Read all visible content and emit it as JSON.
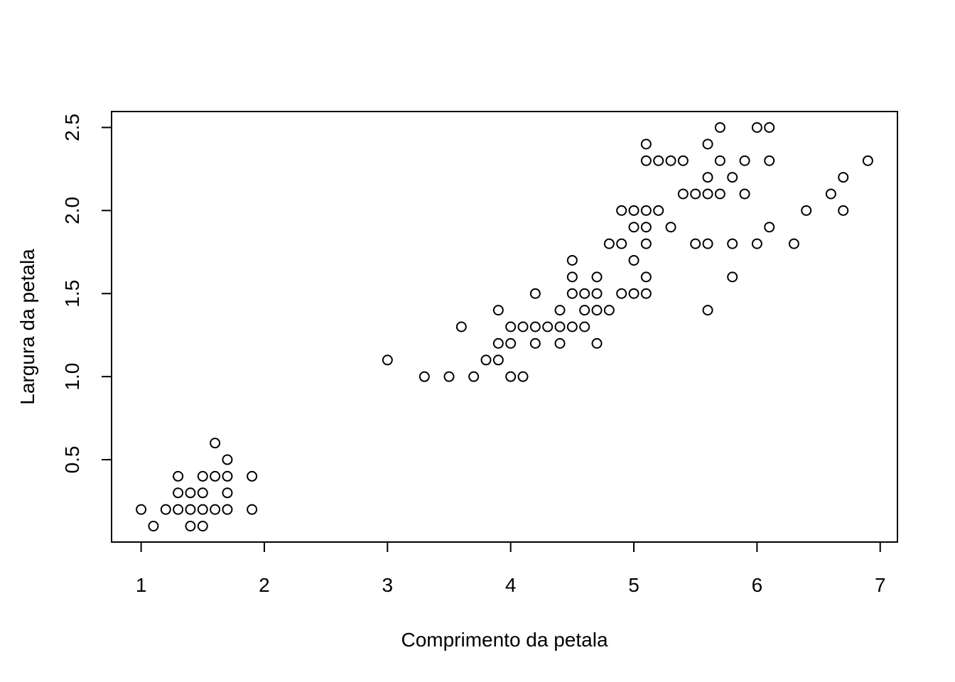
{
  "chart_data": {
    "type": "scatter",
    "title": "",
    "xlabel": "Comprimento da petala",
    "ylabel": "Largura da petala",
    "xlim": [
      0.76,
      7.14
    ],
    "ylim": [
      0.004,
      2.596
    ],
    "xticks": [
      1,
      2,
      3,
      4,
      5,
      6,
      7
    ],
    "xtick_labels": [
      "1",
      "2",
      "3",
      "4",
      "5",
      "6",
      "7"
    ],
    "yticks": [
      0.5,
      1.0,
      1.5,
      2.0,
      2.5
    ],
    "ytick_labels": [
      "0.5",
      "1.0",
      "1.5",
      "2.0",
      "2.5"
    ],
    "grid": false,
    "marker": "open-circle",
    "points": [
      [
        1.0,
        0.2
      ],
      [
        1.1,
        0.1
      ],
      [
        1.2,
        0.2
      ],
      [
        1.3,
        0.2
      ],
      [
        1.3,
        0.3
      ],
      [
        1.3,
        0.4
      ],
      [
        1.4,
        0.1
      ],
      [
        1.4,
        0.2
      ],
      [
        1.4,
        0.3
      ],
      [
        1.5,
        0.1
      ],
      [
        1.5,
        0.2
      ],
      [
        1.5,
        0.3
      ],
      [
        1.5,
        0.4
      ],
      [
        1.6,
        0.2
      ],
      [
        1.6,
        0.4
      ],
      [
        1.6,
        0.6
      ],
      [
        1.7,
        0.2
      ],
      [
        1.7,
        0.3
      ],
      [
        1.7,
        0.4
      ],
      [
        1.7,
        0.5
      ],
      [
        1.9,
        0.2
      ],
      [
        1.9,
        0.4
      ],
      [
        3.0,
        1.1
      ],
      [
        3.3,
        1.0
      ],
      [
        3.5,
        1.0
      ],
      [
        3.6,
        1.3
      ],
      [
        3.7,
        1.0
      ],
      [
        3.8,
        1.1
      ],
      [
        3.9,
        1.1
      ],
      [
        3.9,
        1.2
      ],
      [
        3.9,
        1.4
      ],
      [
        4.0,
        1.0
      ],
      [
        4.0,
        1.2
      ],
      [
        4.0,
        1.3
      ],
      [
        4.1,
        1.0
      ],
      [
        4.1,
        1.3
      ],
      [
        4.2,
        1.2
      ],
      [
        4.2,
        1.3
      ],
      [
        4.2,
        1.5
      ],
      [
        4.3,
        1.3
      ],
      [
        4.4,
        1.2
      ],
      [
        4.4,
        1.3
      ],
      [
        4.4,
        1.4
      ],
      [
        4.5,
        1.3
      ],
      [
        4.5,
        1.5
      ],
      [
        4.5,
        1.6
      ],
      [
        4.5,
        1.7
      ],
      [
        4.6,
        1.3
      ],
      [
        4.6,
        1.4
      ],
      [
        4.6,
        1.5
      ],
      [
        4.7,
        1.2
      ],
      [
        4.7,
        1.4
      ],
      [
        4.7,
        1.5
      ],
      [
        4.7,
        1.6
      ],
      [
        4.8,
        1.4
      ],
      [
        4.8,
        1.8
      ],
      [
        4.9,
        1.5
      ],
      [
        4.9,
        1.8
      ],
      [
        4.9,
        2.0
      ],
      [
        5.0,
        1.5
      ],
      [
        5.0,
        1.7
      ],
      [
        5.0,
        1.9
      ],
      [
        5.0,
        2.0
      ],
      [
        5.1,
        1.5
      ],
      [
        5.1,
        1.6
      ],
      [
        5.1,
        1.8
      ],
      [
        5.1,
        1.9
      ],
      [
        5.1,
        2.0
      ],
      [
        5.1,
        2.3
      ],
      [
        5.1,
        2.4
      ],
      [
        5.2,
        2.0
      ],
      [
        5.2,
        2.3
      ],
      [
        5.3,
        1.9
      ],
      [
        5.3,
        2.3
      ],
      [
        5.4,
        2.1
      ],
      [
        5.4,
        2.3
      ],
      [
        5.5,
        1.8
      ],
      [
        5.5,
        2.1
      ],
      [
        5.6,
        1.4
      ],
      [
        5.6,
        1.8
      ],
      [
        5.6,
        2.1
      ],
      [
        5.6,
        2.2
      ],
      [
        5.6,
        2.4
      ],
      [
        5.7,
        2.1
      ],
      [
        5.7,
        2.3
      ],
      [
        5.7,
        2.5
      ],
      [
        5.8,
        1.6
      ],
      [
        5.8,
        1.8
      ],
      [
        5.8,
        2.2
      ],
      [
        5.9,
        2.1
      ],
      [
        5.9,
        2.3
      ],
      [
        6.0,
        1.8
      ],
      [
        6.0,
        2.5
      ],
      [
        6.1,
        1.9
      ],
      [
        6.1,
        2.3
      ],
      [
        6.1,
        2.5
      ],
      [
        6.3,
        1.8
      ],
      [
        6.4,
        2.0
      ],
      [
        6.6,
        2.1
      ],
      [
        6.7,
        2.0
      ],
      [
        6.7,
        2.2
      ],
      [
        6.9,
        2.3
      ]
    ]
  }
}
